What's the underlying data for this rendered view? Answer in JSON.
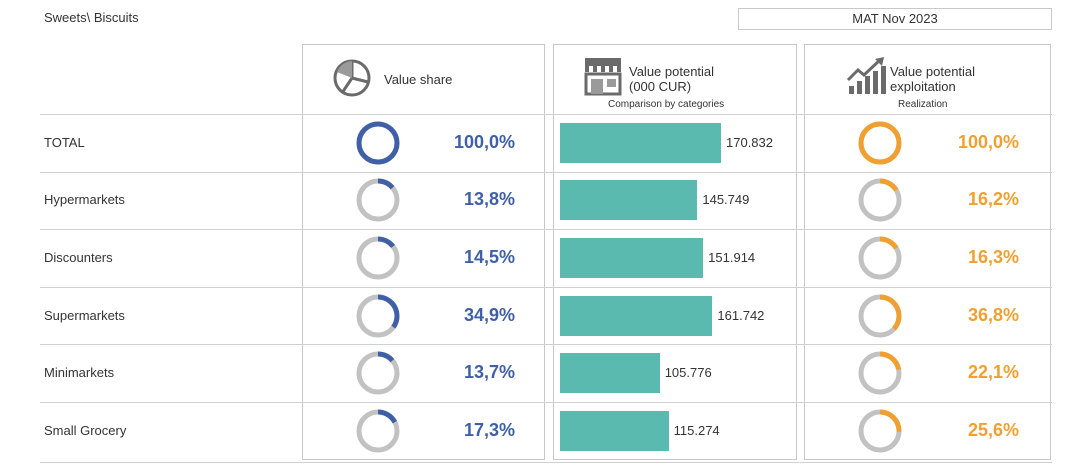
{
  "header": {
    "breadcrumb": "Sweets\\ Biscuits",
    "period": "MAT Nov 2023"
  },
  "columns": {
    "share": {
      "title": "Value share",
      "icon": "pie-chart-icon"
    },
    "potential": {
      "title_line1": "Value potential",
      "title_line2": "(000 CUR)",
      "subtitle": "Comparison by categories",
      "icon": "store-icon"
    },
    "exploitation": {
      "title_line1": "Value potential",
      "title_line2": "exploitation",
      "subtitle": "Realization",
      "icon": "growth-chart-icon"
    }
  },
  "colors": {
    "share": "#3f5fa6",
    "exploitation": "#f0a030",
    "bar": "#5bbab0",
    "ring_track": "#c2c2c2"
  },
  "chart_data": {
    "type": "table",
    "categories": [
      "TOTAL",
      "Hypermarkets",
      "Discounters",
      "Supermarkets",
      "Minimarkets",
      "Small Grocery"
    ],
    "rows": [
      {
        "label": "TOTAL",
        "share": 100.0,
        "share_label": "100,0%",
        "potential": 170832,
        "potential_label": "170.832",
        "exploitation": 100.0,
        "exploitation_label": "100,0%"
      },
      {
        "label": "Hypermarkets",
        "share": 13.8,
        "share_label": "13,8%",
        "potential": 145749,
        "potential_label": "145.749",
        "exploitation": 16.2,
        "exploitation_label": "16,2%"
      },
      {
        "label": "Discounters",
        "share": 14.5,
        "share_label": "14,5%",
        "potential": 151914,
        "potential_label": "151.914",
        "exploitation": 16.3,
        "exploitation_label": "16,3%"
      },
      {
        "label": "Supermarkets",
        "share": 34.9,
        "share_label": "34,9%",
        "potential": 161742,
        "potential_label": "161.742",
        "exploitation": 36.8,
        "exploitation_label": "36,8%"
      },
      {
        "label": "Minimarkets",
        "share": 13.7,
        "share_label": "13,7%",
        "potential": 105776,
        "potential_label": "105.776",
        "exploitation": 22.1,
        "exploitation_label": "22,1%"
      },
      {
        "label": "Small Grocery",
        "share": 17.3,
        "share_label": "17,3%",
        "potential": 115274,
        "potential_label": "115.274",
        "exploitation": 25.6,
        "exploitation_label": "25,6%"
      }
    ],
    "potential_max": 170832
  }
}
